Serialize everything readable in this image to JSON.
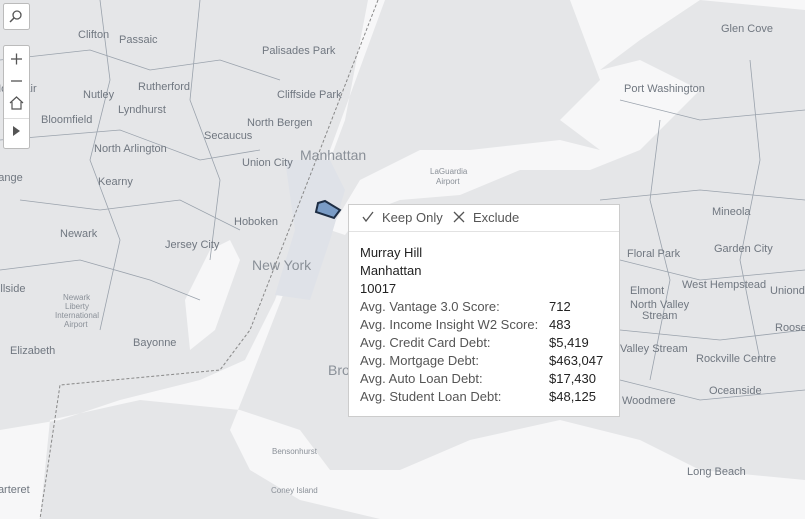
{
  "places": [
    "Clifton",
    "Passaic",
    "Palisades Park",
    "Glen Cove",
    "Montclair",
    "Nutley",
    "Rutherford",
    "Cliffside Park",
    "Port Washington",
    "Lyndhurst",
    "Bloomfield",
    "North Bergen",
    "Secaucus",
    "North Arlington",
    "Manhattan",
    "Union City",
    "Kearny",
    "Hoboken",
    "Mineola",
    "Newark",
    "Jersey City",
    "New York",
    "Floral Park",
    "Garden City",
    "Elmont",
    "West Hempstead",
    "Uniondale",
    "Hillside",
    "North Valley",
    "Stream",
    "Roosevelt",
    "Elizabeth",
    "Bayonne",
    "Valley Stream",
    "Rockville Centre",
    "Oceanside",
    "Woodmere",
    "Brooklyn",
    "Bensonhurst",
    "Coney Island",
    "Long Beach",
    "Carteret",
    "LaGuardia",
    "Airport",
    "Newark",
    "Liberty",
    "International",
    "Airport",
    "Orange"
  ],
  "tooltip": {
    "actions": [
      "Keep Only",
      "Exclude"
    ],
    "title": [
      "Murray Hill",
      "Manhattan",
      "10017"
    ],
    "rows": [
      {
        "label": "Avg. Vantage 3.0 Score:",
        "value": "712"
      },
      {
        "label": "Avg. Income Insight W2 Score:",
        "value": "483"
      },
      {
        "label": "Avg. Credit Card Debt:",
        "value": "$5,419"
      },
      {
        "label": "Avg. Mortgage Debt:",
        "value": "$463,047"
      },
      {
        "label": "Avg. Auto Loan Debt:",
        "value": "$17,430"
      },
      {
        "label": "Avg. Student Loan Debt:",
        "value": "$48,125"
      }
    ]
  }
}
